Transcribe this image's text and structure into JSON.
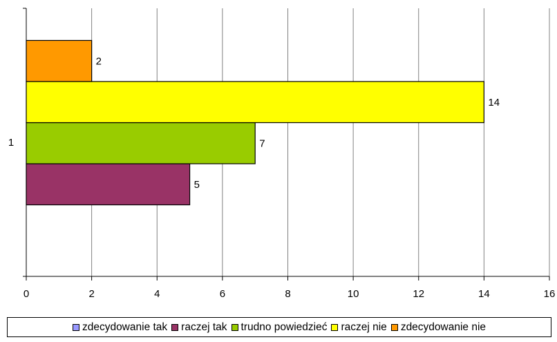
{
  "chart_data": {
    "type": "bar",
    "orientation": "horizontal",
    "categories": [
      "1"
    ],
    "series": [
      {
        "name": "zdecydowanie tak",
        "values": [
          0
        ],
        "color": "#9999FF"
      },
      {
        "name": "raczej tak",
        "values": [
          5
        ],
        "color": "#993366"
      },
      {
        "name": "trudno powiedzieć",
        "values": [
          7
        ],
        "color": "#99CC00"
      },
      {
        "name": "raczej nie",
        "values": [
          14
        ],
        "color": "#FFFF00"
      },
      {
        "name": "zdecydowanie nie",
        "values": [
          2
        ],
        "color": "#FF9900"
      }
    ],
    "xlim": [
      0,
      16
    ],
    "xticks": [
      "0",
      "2",
      "4",
      "6",
      "8",
      "10",
      "12",
      "14",
      "16"
    ],
    "data_labels": [
      "",
      "5",
      "7",
      "14",
      "2"
    ],
    "grid": true,
    "legend": "bottom"
  }
}
